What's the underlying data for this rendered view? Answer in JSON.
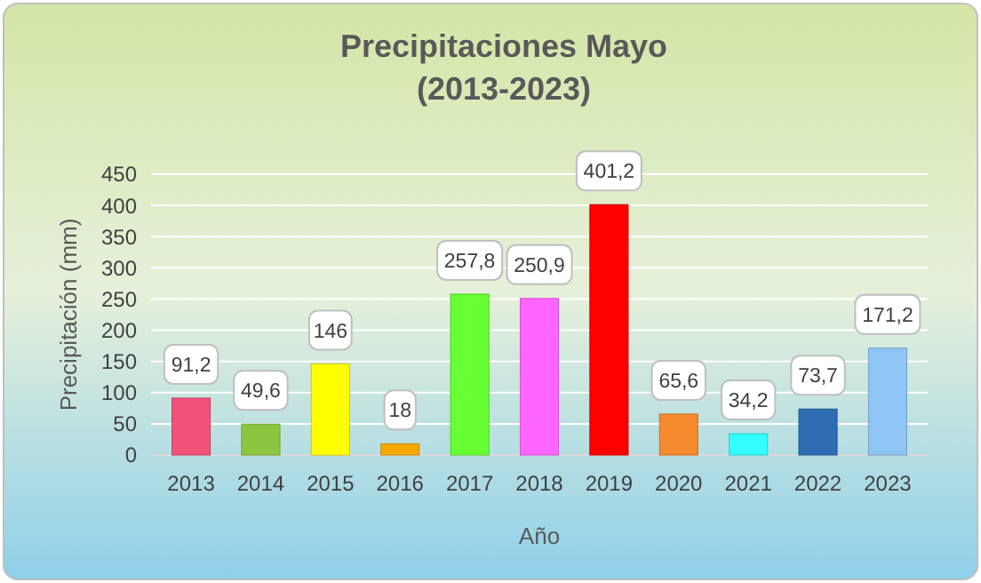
{
  "chart_data": {
    "type": "bar",
    "title": "Precipitaciones Mayo\n(2013-2023)",
    "xlabel": "Año",
    "ylabel": "Precipitación (mm)",
    "categories": [
      "2013",
      "2014",
      "2015",
      "2016",
      "2017",
      "2018",
      "2019",
      "2020",
      "2021",
      "2022",
      "2023"
    ],
    "values": [
      91.2,
      49.6,
      146,
      18,
      257.8,
      250.9,
      401.2,
      65.6,
      34.2,
      73.7,
      171.2
    ],
    "colors": [
      "#f0527a",
      "#8cc63e",
      "#ffff00",
      "#f7a800",
      "#66ff33",
      "#ff66ff",
      "#ff0000",
      "#f58a2e",
      "#33ffff",
      "#2e6db4",
      "#8ec5f5"
    ],
    "value_labels": [
      "91,2",
      "49,6",
      "146",
      "18",
      "257,8",
      "250,9",
      "401,2",
      "65,6",
      "34,2",
      "73,7",
      "171,2"
    ],
    "ylim": [
      0,
      450
    ],
    "yticks": [
      0,
      50,
      100,
      150,
      200,
      250,
      300,
      350,
      400,
      450
    ],
    "grid": "y"
  }
}
